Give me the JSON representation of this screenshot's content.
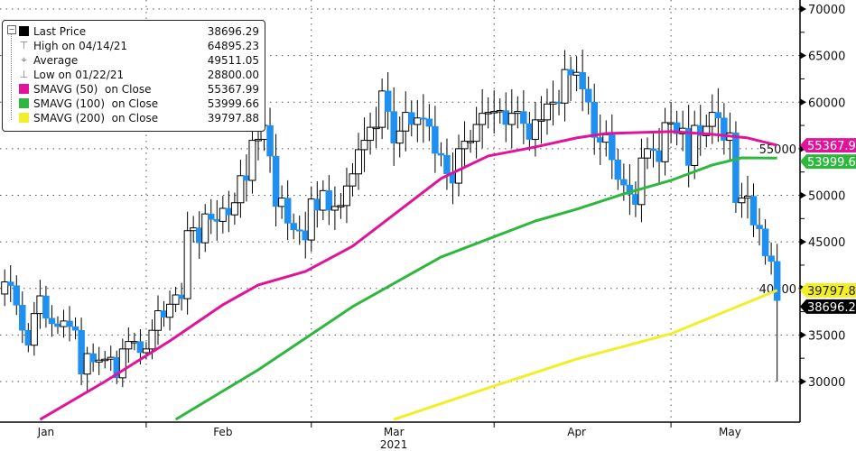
{
  "chart_data": {
    "type": "candlestick",
    "title": "",
    "xlabel": "2021",
    "ylabel": "",
    "ylim": [
      23800,
      70970
    ],
    "yticks": [
      30000,
      35000,
      40000,
      45000,
      50000,
      55000,
      60000,
      65000,
      70000
    ],
    "ytick_labels": [
      "30000",
      "35000",
      "40000",
      "45000",
      "50000",
      "55000",
      "60000",
      "65000",
      "70000"
    ],
    "xlim": [
      "2021-01-07",
      "2021-05-23"
    ],
    "month_labels": [
      {
        "label": "Jan",
        "date": "2021-01-15"
      },
      {
        "label": "Feb",
        "date": "2021-02-14"
      },
      {
        "label": "Mar",
        "date": "2021-03-15"
      },
      {
        "label": "Apr",
        "date": "2021-04-15"
      },
      {
        "label": "May",
        "date": "2021-05-11"
      }
    ],
    "month_gridlines": [
      "2021-02-01",
      "2021-03-01",
      "2021-04-01",
      "2021-05-01"
    ],
    "year_label": "2021",
    "grid": true,
    "legend_position": "top-left",
    "start_date": "2021-01-07",
    "first_open": 36800,
    "wick_pct": 0.022,
    "close": [
      39400,
      40700,
      40300,
      38200,
      35500,
      33900,
      37300,
      39200,
      36800,
      36200,
      35900,
      36500,
      35900,
      35500,
      30800,
      33000,
      32100,
      32300,
      32400,
      32600,
      30400,
      33500,
      34300,
      34300,
      33100,
      33500,
      35500,
      37600,
      36900,
      38300,
      39300,
      38900,
      46200,
      46500,
      44900,
      48000,
      47400,
      47200,
      48600,
      47900,
      49200,
      52100,
      51600,
      55900,
      56000,
      57500,
      54200,
      48800,
      49700,
      47000,
      46300,
      46200,
      45200,
      49600,
      48400,
      50500,
      48400,
      48800,
      48900,
      51000,
      52300,
      54900,
      55900,
      57300,
      57300,
      61200,
      59000,
      55600,
      56900,
      58900,
      57600,
      58300,
      58200,
      57400,
      54500,
      54300,
      52300,
      51300,
      55000,
      55800,
      55800,
      57600,
      58800,
      58900,
      59000,
      59100,
      57600,
      58800,
      59000,
      57700,
      56000,
      58100,
      58100,
      59800,
      60000,
      59900,
      63500,
      62900,
      63200,
      61400,
      60000,
      56200,
      55700,
      56500,
      53800,
      51700,
      51100,
      50100,
      49000,
      54000,
      55000,
      54800,
      53600,
      57800,
      57800,
      56600,
      57200,
      53200,
      57500,
      56400,
      57400,
      58900,
      58300,
      55900,
      56700,
      49200,
      49700,
      49900,
      46800,
      46400,
      43500,
      42900,
      38696.29
    ],
    "extremes": [
      {
        "date": "2021-01-22",
        "low": 28800
      },
      {
        "date": "2021-04-14",
        "high": 64895.23
      },
      {
        "date": "2021-05-19",
        "low": 30000
      }
    ],
    "series": [
      {
        "name": "SMAVG (50) on Close",
        "color": "#e0139a",
        "points": [
          [
            "2021-01-14",
            25930
          ],
          [
            "2021-01-25",
            30000
          ],
          [
            "2021-02-05",
            34360
          ],
          [
            "2021-02-14",
            38240
          ],
          [
            "2021-02-20",
            40370
          ],
          [
            "2021-02-28",
            41820
          ],
          [
            "2021-03-08",
            44530
          ],
          [
            "2021-03-15",
            47920
          ],
          [
            "2021-03-23",
            51800
          ],
          [
            "2021-03-31",
            54220
          ],
          [
            "2021-04-08",
            55190
          ],
          [
            "2021-04-15",
            56160
          ],
          [
            "2021-04-20",
            56640
          ],
          [
            "2021-05-01",
            56840
          ],
          [
            "2021-05-08",
            56550
          ],
          [
            "2021-05-14",
            56160
          ],
          [
            "2021-05-19",
            55367.99
          ]
        ]
      },
      {
        "name": "SMAVG (100) on Close",
        "color": "#2db83d",
        "points": [
          [
            "2021-02-06",
            25930
          ],
          [
            "2021-02-20",
            31260
          ],
          [
            "2021-03-08",
            38040
          ],
          [
            "2021-03-23",
            43370
          ],
          [
            "2021-04-08",
            47240
          ],
          [
            "2021-04-15",
            48500
          ],
          [
            "2021-04-23",
            50150
          ],
          [
            "2021-05-01",
            51600
          ],
          [
            "2021-05-08",
            53250
          ],
          [
            "2021-05-13",
            54020
          ],
          [
            "2021-05-19",
            53999.66
          ]
        ]
      },
      {
        "name": "SMAVG (200) on Close",
        "color": "#f2ee2a",
        "points": [
          [
            "2021-03-15",
            25930
          ],
          [
            "2021-03-31",
            29320
          ],
          [
            "2021-04-15",
            32420
          ],
          [
            "2021-05-01",
            35130
          ],
          [
            "2021-05-19",
            39797.88
          ]
        ]
      }
    ],
    "up_color": "#ffffff",
    "down_color": "#1f8ff0",
    "price_tags": [
      {
        "text": "55367.99",
        "value": 55367.99,
        "bg": "#e0139a",
        "fg": "#ffffff"
      },
      {
        "text": "53999.66",
        "value": 53999.66,
        "bg": "#2db83d",
        "fg": "#ffffff"
      },
      {
        "text": "39797.88",
        "value": 39797.88,
        "bg": "#f2ee2a",
        "fg": "#222222"
      },
      {
        "text": "38696.29",
        "value": 38696.29,
        "bg": "#000000",
        "fg": "#ffffff"
      }
    ]
  },
  "legend": [
    {
      "label": "Last Price",
      "value": "38696.29",
      "swatch": "#000000"
    },
    {
      "label": "High on 04/14/21",
      "value": "64895.23",
      "icon": "T"
    },
    {
      "label": "Average",
      "value": "49511.05",
      "icon": "-+-"
    },
    {
      "label": "Low on 01/22/21",
      "value": "28800.00",
      "icon": "⊥"
    },
    {
      "label": "SMAVG (50)  on Close",
      "value": "55367.99",
      "swatch": "#e0139a"
    },
    {
      "label": "SMAVG (100)  on Close",
      "value": "53999.66",
      "swatch": "#2db83d"
    },
    {
      "label": "SMAVG (200)  on Close",
      "value": "39797.88",
      "swatch": "#f2ee2a"
    }
  ]
}
